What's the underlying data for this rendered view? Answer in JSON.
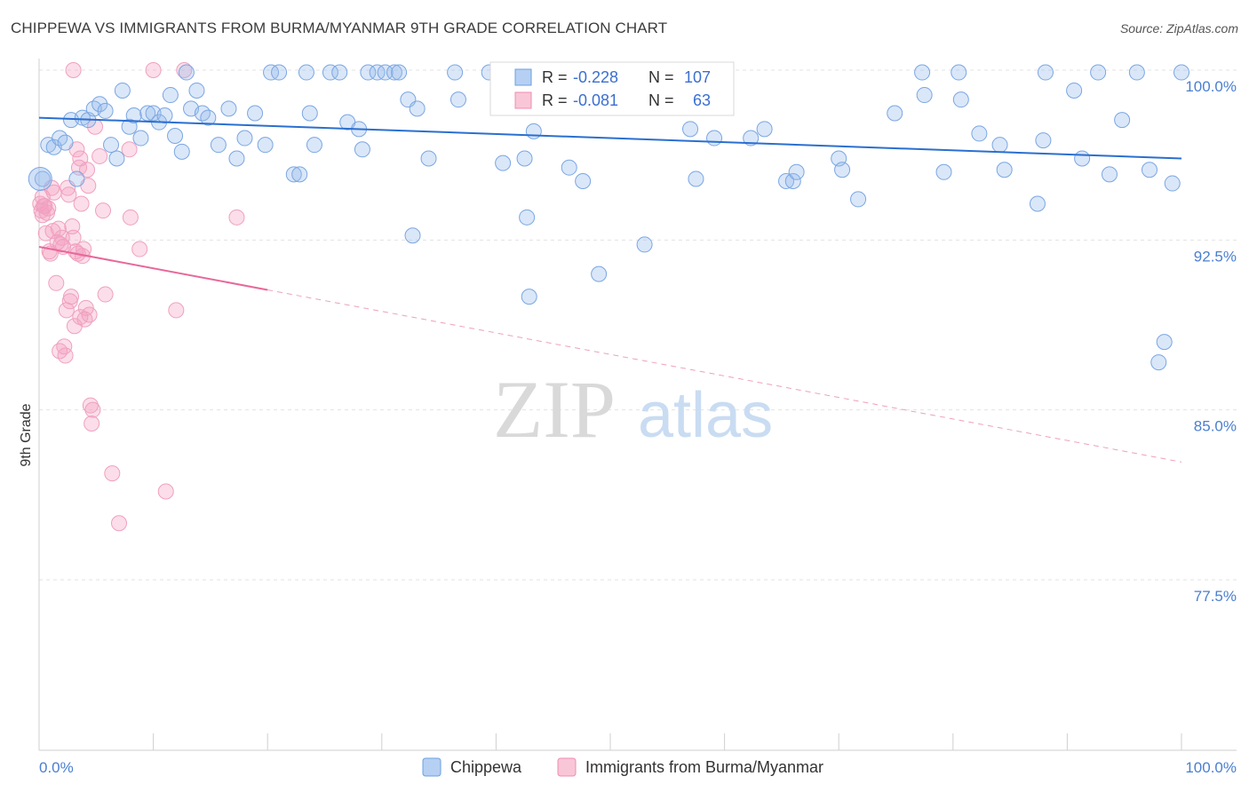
{
  "header": {
    "title": "CHIPPEWA VS IMMIGRANTS FROM BURMA/MYANMAR 9TH GRADE CORRELATION CHART",
    "source": "Source: ZipAtlas.com"
  },
  "watermark": {
    "zip": "ZIP",
    "atlas": "atlas"
  },
  "stats_box": {
    "rows": [
      {
        "r_label": "R =",
        "r_value": "-0.228",
        "n_label": "N =",
        "n_value": "107"
      },
      {
        "r_label": "R =",
        "r_value": "-0.081",
        "n_label": "N =",
        "n_value": "63"
      }
    ]
  },
  "legend": {
    "items": [
      "Chippewa",
      "Immigrants from Burma/Myanmar"
    ]
  },
  "chart_data": {
    "type": "scatter",
    "title": "CHIPPEWA VS IMMIGRANTS FROM BURMA/MYANMAR 9TH GRADE CORRELATION CHART",
    "xlabel": "",
    "ylabel": "9th Grade",
    "xlim": [
      0,
      100
    ],
    "ylim": [
      70,
      100.5
    ],
    "x_tick_labels": [
      "0.0%",
      "100.0%"
    ],
    "y_ticks": [
      77.5,
      85.0,
      92.5,
      100.0
    ],
    "y_tick_labels": [
      "77.5%",
      "85.0%",
      "92.5%",
      "100.0%"
    ],
    "grid": true,
    "legend_position": "bottom-center",
    "colors": {
      "chippewa": "#6b9fe0",
      "burma": "#f08cb0",
      "chippewa_line": "#2a6fd0",
      "burma_line": "#e8689a"
    },
    "series": [
      {
        "name": "Chippewa",
        "r": -0.228,
        "n": 107,
        "trend": {
          "x": [
            0,
            100
          ],
          "y": [
            97.9,
            96.1
          ]
        },
        "points": [
          [
            0.3,
            95.2
          ],
          [
            0.8,
            96.7
          ],
          [
            1.3,
            96.6
          ],
          [
            1.8,
            97.0
          ],
          [
            2.3,
            96.8
          ],
          [
            2.8,
            97.8
          ],
          [
            3.3,
            95.2
          ],
          [
            3.8,
            97.9
          ],
          [
            4.3,
            97.8
          ],
          [
            4.8,
            98.3
          ],
          [
            5.3,
            98.5
          ],
          [
            5.8,
            98.2
          ],
          [
            6.3,
            96.7
          ],
          [
            6.8,
            96.1
          ],
          [
            7.3,
            99.1
          ],
          [
            7.9,
            97.5
          ],
          [
            8.3,
            98.0
          ],
          [
            8.9,
            97.0
          ],
          [
            9.5,
            98.1
          ],
          [
            10.0,
            98.1
          ],
          [
            10.5,
            97.7
          ],
          [
            11.0,
            98.0
          ],
          [
            11.5,
            98.9
          ],
          [
            11.9,
            97.1
          ],
          [
            12.5,
            96.4
          ],
          [
            12.9,
            99.9
          ],
          [
            13.3,
            98.3
          ],
          [
            13.8,
            99.1
          ],
          [
            14.3,
            98.1
          ],
          [
            14.8,
            97.9
          ],
          [
            15.7,
            96.7
          ],
          [
            16.6,
            98.3
          ],
          [
            17.3,
            96.1
          ],
          [
            18.0,
            97.0
          ],
          [
            18.9,
            98.1
          ],
          [
            19.8,
            96.7
          ],
          [
            20.3,
            99.9
          ],
          [
            21.0,
            99.9
          ],
          [
            22.3,
            95.4
          ],
          [
            22.8,
            95.4
          ],
          [
            23.4,
            99.9
          ],
          [
            23.7,
            98.1
          ],
          [
            24.1,
            96.7
          ],
          [
            25.5,
            99.9
          ],
          [
            26.3,
            99.9
          ],
          [
            27.0,
            97.7
          ],
          [
            28.0,
            97.4
          ],
          [
            28.3,
            96.5
          ],
          [
            28.8,
            99.9
          ],
          [
            29.6,
            99.9
          ],
          [
            30.3,
            99.9
          ],
          [
            31.1,
            99.9
          ],
          [
            31.5,
            99.9
          ],
          [
            32.3,
            98.7
          ],
          [
            32.7,
            92.7
          ],
          [
            33.1,
            98.3
          ],
          [
            34.1,
            96.1
          ],
          [
            36.4,
            99.9
          ],
          [
            36.7,
            98.7
          ],
          [
            39.4,
            99.9
          ],
          [
            40.6,
            95.9
          ],
          [
            42.5,
            96.1
          ],
          [
            42.7,
            93.5
          ],
          [
            42.9,
            90.0
          ],
          [
            43.3,
            97.3
          ],
          [
            44.6,
            98.9
          ],
          [
            46.4,
            95.7
          ],
          [
            47.6,
            95.1
          ],
          [
            48.2,
            98.7
          ],
          [
            49.0,
            91.0
          ],
          [
            50.0,
            99.9
          ],
          [
            53.0,
            92.3
          ],
          [
            54.0,
            98.4
          ],
          [
            55.0,
            99.9
          ],
          [
            57.0,
            97.4
          ],
          [
            57.5,
            95.2
          ],
          [
            59.1,
            97.0
          ],
          [
            62.3,
            97.0
          ],
          [
            63.5,
            97.4
          ],
          [
            65.4,
            95.1
          ],
          [
            66.0,
            95.1
          ],
          [
            66.3,
            95.5
          ],
          [
            70.0,
            96.1
          ],
          [
            70.3,
            95.6
          ],
          [
            71.7,
            94.3
          ],
          [
            74.9,
            98.1
          ],
          [
            77.3,
            99.9
          ],
          [
            77.5,
            98.9
          ],
          [
            79.2,
            95.5
          ],
          [
            80.5,
            99.9
          ],
          [
            80.7,
            98.7
          ],
          [
            82.3,
            97.2
          ],
          [
            84.1,
            96.7
          ],
          [
            84.5,
            95.6
          ],
          [
            87.4,
            94.1
          ],
          [
            87.9,
            96.9
          ],
          [
            88.1,
            99.9
          ],
          [
            90.6,
            99.1
          ],
          [
            91.3,
            96.1
          ],
          [
            92.7,
            99.9
          ],
          [
            93.7,
            95.4
          ],
          [
            94.8,
            97.8
          ],
          [
            96.1,
            99.9
          ],
          [
            97.2,
            95.6
          ],
          [
            98.0,
            87.1
          ],
          [
            98.5,
            88.0
          ],
          [
            99.2,
            95.0
          ],
          [
            100.0,
            99.9
          ]
        ]
      },
      {
        "name": "Immigrants from Burma/Myanmar",
        "r": -0.081,
        "n": 63,
        "trend": {
          "x": [
            0,
            20
          ],
          "y": [
            92.2,
            90.3
          ]
        },
        "trend_dashed": {
          "x": [
            20,
            100
          ],
          "y": [
            90.3,
            82.7
          ]
        },
        "points": [
          [
            0.1,
            94.1
          ],
          [
            0.2,
            93.8
          ],
          [
            0.3,
            94.4
          ],
          [
            0.4,
            94.0
          ],
          [
            0.5,
            94.0
          ],
          [
            0.6,
            92.8
          ],
          [
            0.7,
            93.7
          ],
          [
            0.8,
            93.9
          ],
          [
            0.9,
            92.0
          ],
          [
            1.0,
            91.9
          ],
          [
            1.1,
            94.8
          ],
          [
            1.3,
            94.6
          ],
          [
            1.5,
            90.6
          ],
          [
            1.6,
            92.4
          ],
          [
            1.7,
            93.0
          ],
          [
            1.8,
            87.6
          ],
          [
            1.9,
            92.3
          ],
          [
            2.0,
            92.6
          ],
          [
            2.2,
            87.8
          ],
          [
            2.3,
            87.4
          ],
          [
            2.4,
            89.4
          ],
          [
            2.5,
            94.8
          ],
          [
            2.6,
            94.5
          ],
          [
            2.7,
            89.8
          ],
          [
            2.8,
            90.0
          ],
          [
            2.9,
            93.1
          ],
          [
            3.0,
            92.6
          ],
          [
            3.1,
            88.7
          ],
          [
            3.2,
            92.0
          ],
          [
            3.3,
            96.5
          ],
          [
            3.4,
            91.9
          ],
          [
            3.5,
            95.7
          ],
          [
            3.6,
            96.1
          ],
          [
            3.7,
            94.1
          ],
          [
            3.8,
            91.8
          ],
          [
            3.9,
            92.1
          ],
          [
            4.0,
            89.0
          ],
          [
            4.1,
            89.5
          ],
          [
            4.2,
            95.6
          ],
          [
            4.3,
            94.9
          ],
          [
            4.4,
            89.2
          ],
          [
            4.5,
            85.2
          ],
          [
            4.6,
            84.4
          ],
          [
            4.7,
            85.0
          ],
          [
            4.9,
            97.5
          ],
          [
            5.3,
            96.2
          ],
          [
            5.6,
            93.8
          ],
          [
            5.8,
            90.1
          ],
          [
            6.4,
            82.2
          ],
          [
            7.0,
            80.0
          ],
          [
            7.9,
            96.5
          ],
          [
            8.0,
            93.5
          ],
          [
            8.8,
            92.1
          ],
          [
            10.0,
            100.0
          ],
          [
            11.1,
            81.4
          ],
          [
            12.0,
            89.4
          ],
          [
            12.7,
            100.0
          ],
          [
            17.3,
            93.5
          ],
          [
            3.0,
            100.0
          ],
          [
            1.2,
            92.9
          ],
          [
            2.1,
            92.2
          ],
          [
            3.6,
            89.1
          ],
          [
            0.3,
            93.6
          ]
        ]
      }
    ]
  }
}
